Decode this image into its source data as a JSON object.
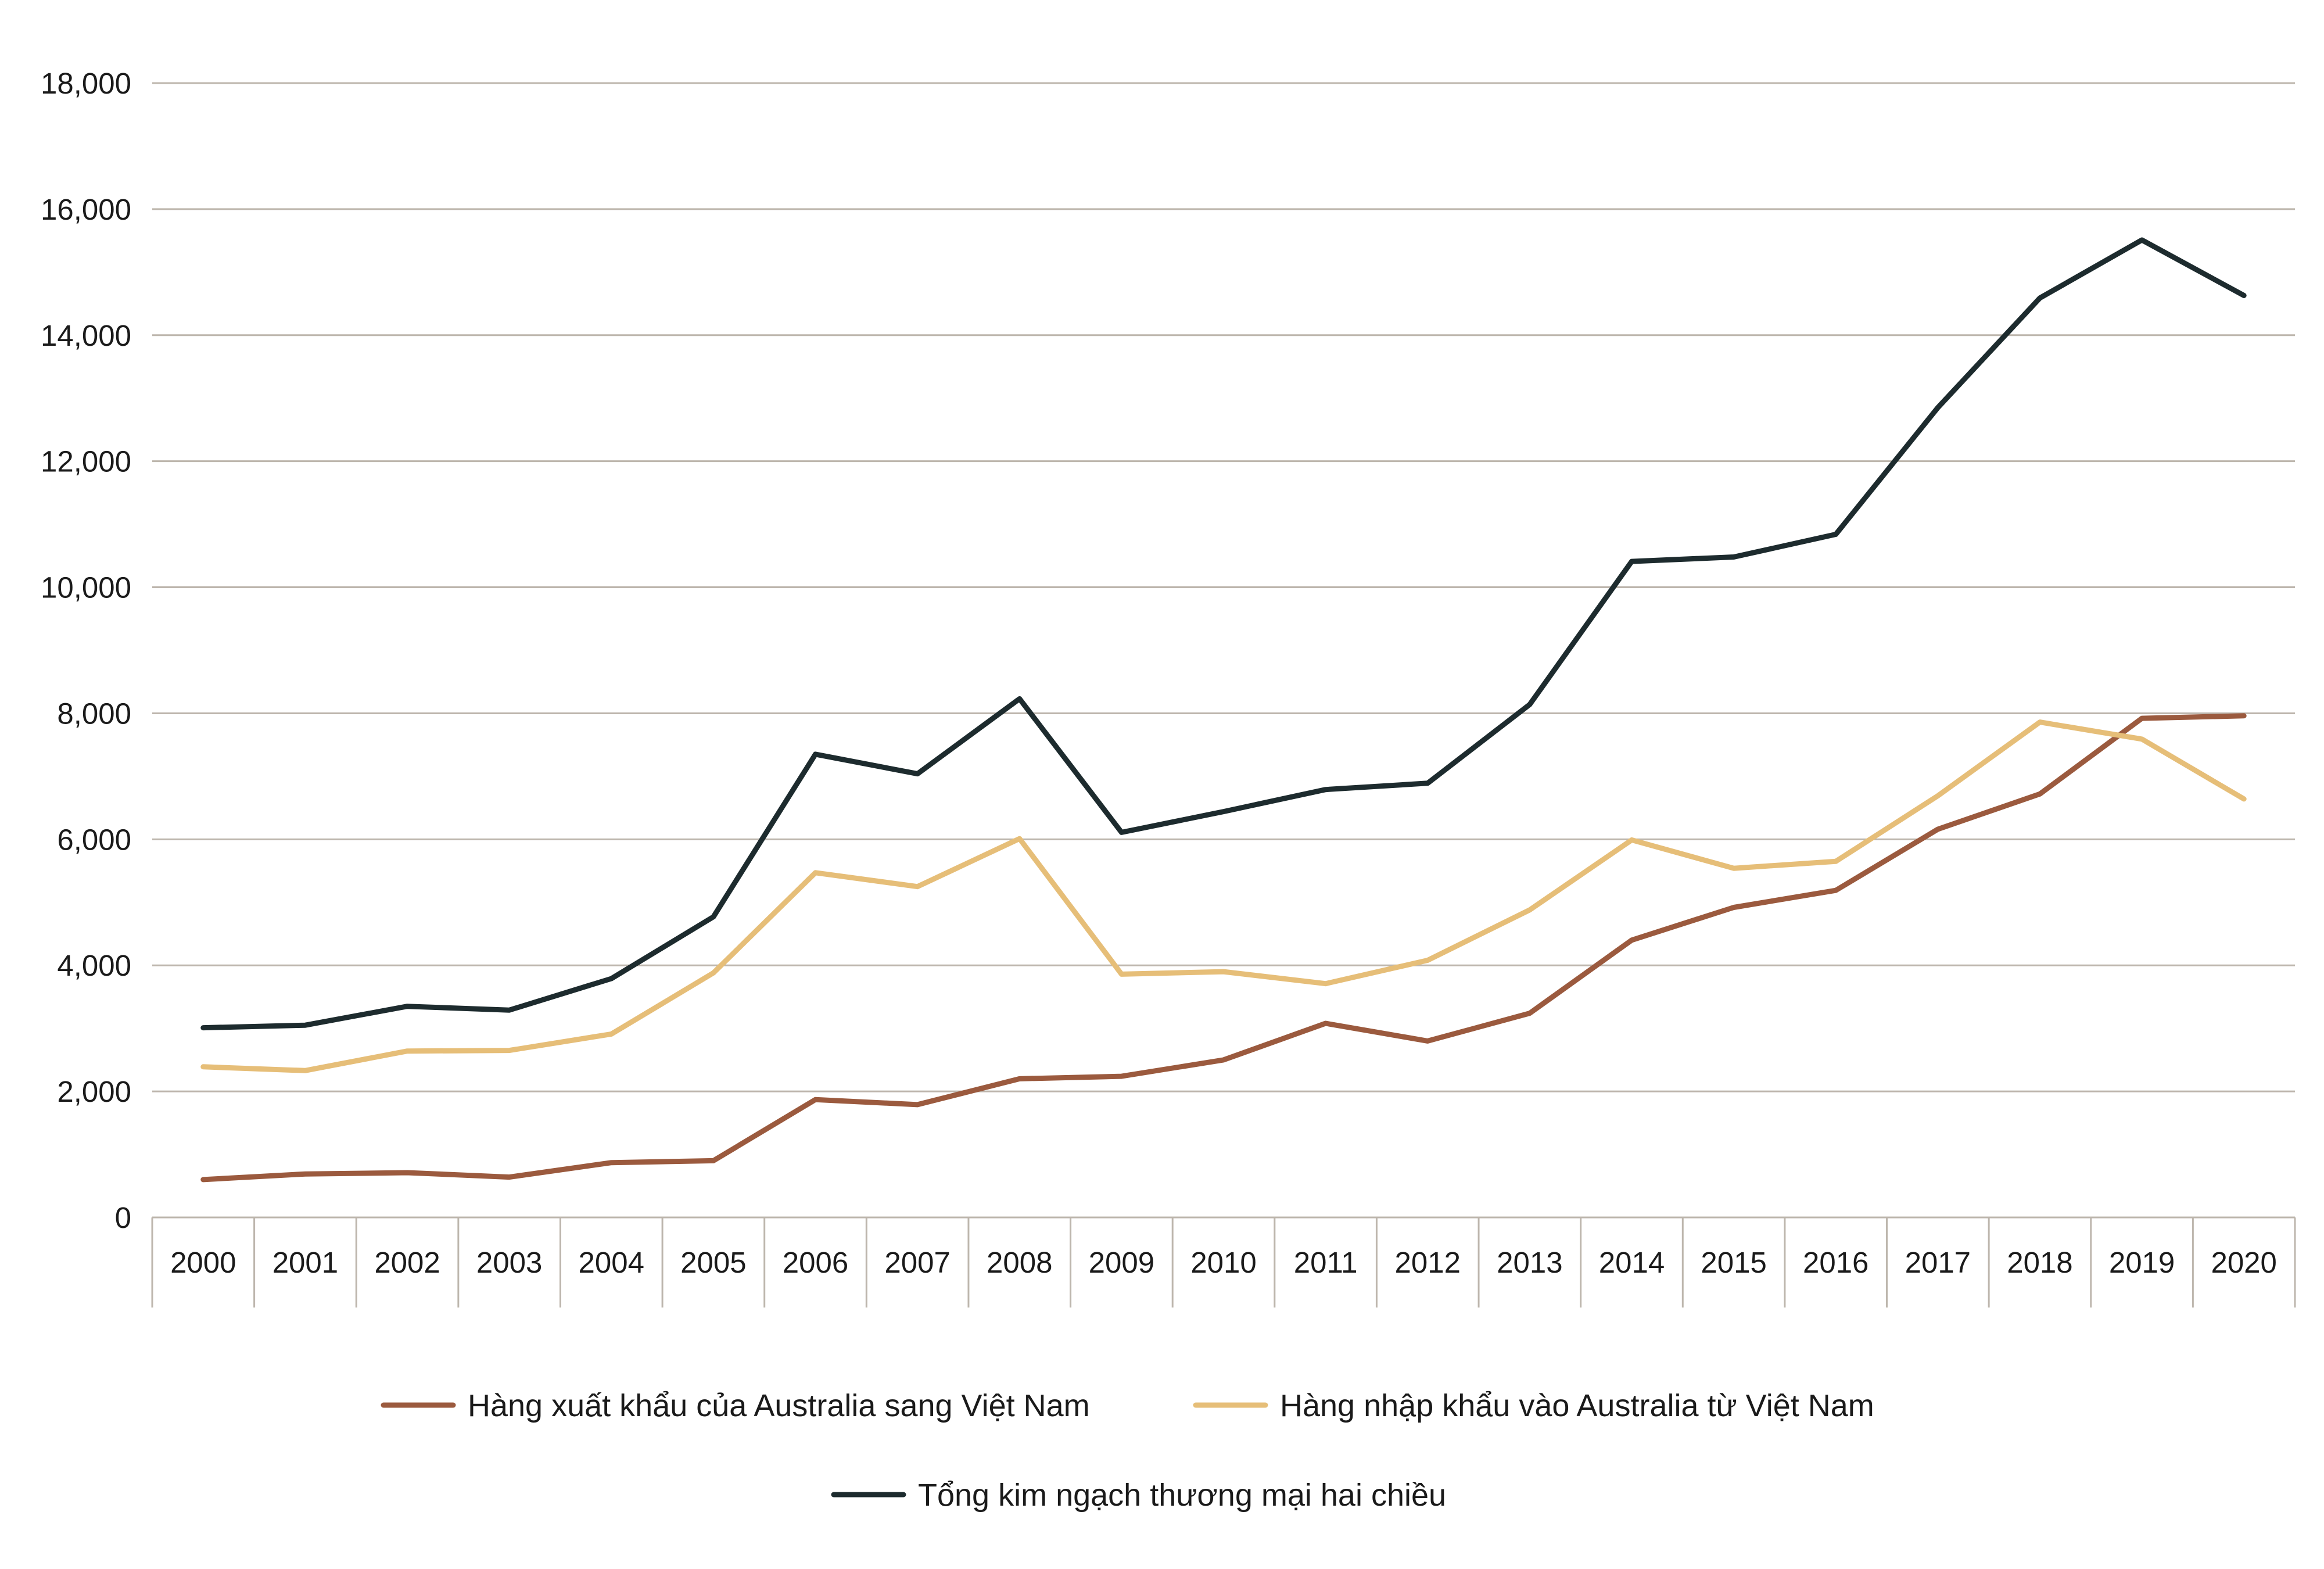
{
  "chart_data": {
    "type": "line",
    "categories": [
      "2000",
      "2001",
      "2002",
      "2003",
      "2004",
      "2005",
      "2006",
      "2007",
      "2008",
      "2009",
      "2010",
      "2011",
      "2012",
      "2013",
      "2014",
      "2015",
      "2016",
      "2017",
      "2018",
      "2019",
      "2020"
    ],
    "series": [
      {
        "name": "Hàng xuất khẩu của Australia sang Việt Nam",
        "color": "#9b5a3e",
        "values": [
          600,
          690,
          710,
          640,
          870,
          900,
          1870,
          1790,
          2200,
          2240,
          2500,
          3080,
          2800,
          3240,
          4400,
          4920,
          5190,
          6160,
          6720,
          7920,
          7960
        ]
      },
      {
        "name": "Hàng nhập khẩu vào Australia từ Việt Nam",
        "color": "#e6be78",
        "values": [
          2390,
          2330,
          2640,
          2650,
          2910,
          3880,
          5470,
          5250,
          6010,
          3860,
          3900,
          3710,
          4080,
          4880,
          5990,
          5540,
          5650,
          6690,
          7860,
          7590,
          6640
        ]
      },
      {
        "name": "Tổng kim ngạch thương mại hai chiều",
        "color": "#1d2b2e",
        "values": [
          3010,
          3050,
          3350,
          3290,
          3790,
          4770,
          7350,
          7040,
          8230,
          6110,
          6440,
          6790,
          6890,
          8140,
          10410,
          10480,
          10840,
          12850,
          14590,
          15510,
          14630
        ]
      }
    ],
    "y_ticks": [
      "0",
      "2,000",
      "4,000",
      "6,000",
      "8,000",
      "10,000",
      "12,000",
      "14,000",
      "16,000",
      "18,000"
    ],
    "ylim": [
      0,
      18000
    ],
    "grid": true,
    "legend": "bottom"
  }
}
